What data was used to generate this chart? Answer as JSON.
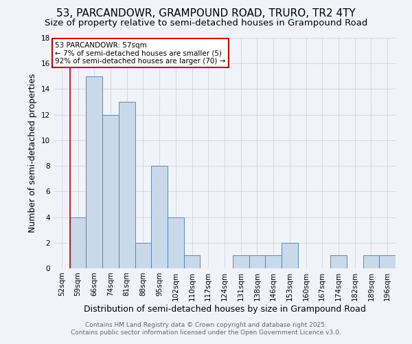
{
  "title": "53, PARCANDOWR, GRAMPOUND ROAD, TRURO, TR2 4TY",
  "subtitle": "Size of property relative to semi-detached houses in Grampound Road",
  "xlabel": "Distribution of semi-detached houses by size in Grampound Road",
  "ylabel": "Number of semi-detached properties",
  "categories": [
    "52sqm",
    "59sqm",
    "66sqm",
    "74sqm",
    "81sqm",
    "88sqm",
    "95sqm",
    "102sqm",
    "110sqm",
    "117sqm",
    "124sqm",
    "131sqm",
    "138sqm",
    "146sqm",
    "153sqm",
    "160sqm",
    "167sqm",
    "174sqm",
    "182sqm",
    "189sqm",
    "196sqm"
  ],
  "values": [
    0,
    4,
    15,
    12,
    13,
    2,
    8,
    4,
    1,
    0,
    0,
    1,
    1,
    1,
    2,
    0,
    0,
    1,
    0,
    1,
    1
  ],
  "bar_color": "#c9d9ea",
  "bar_edge_color": "#4a7ab5",
  "red_line_index": 0,
  "red_line_color": "#cc0000",
  "annotation_text": "53 PARCANDOWR: 57sqm\n← 7% of semi-detached houses are smaller (5)\n92% of semi-detached houses are larger (70) →",
  "annotation_box_edge": "#cc0000",
  "ylim": [
    0,
    18
  ],
  "yticks": [
    0,
    2,
    4,
    6,
    8,
    10,
    12,
    14,
    16,
    18
  ],
  "background_color": "#f0f4fa",
  "grid_color": "#cccccc",
  "footer_text": "Contains HM Land Registry data © Crown copyright and database right 2025.\nContains public sector information licensed under the Open Government Licence v3.0.",
  "title_fontsize": 11,
  "subtitle_fontsize": 9.5,
  "axis_label_fontsize": 9,
  "tick_fontsize": 7.5,
  "annotation_fontsize": 7.5,
  "footer_fontsize": 6.5
}
